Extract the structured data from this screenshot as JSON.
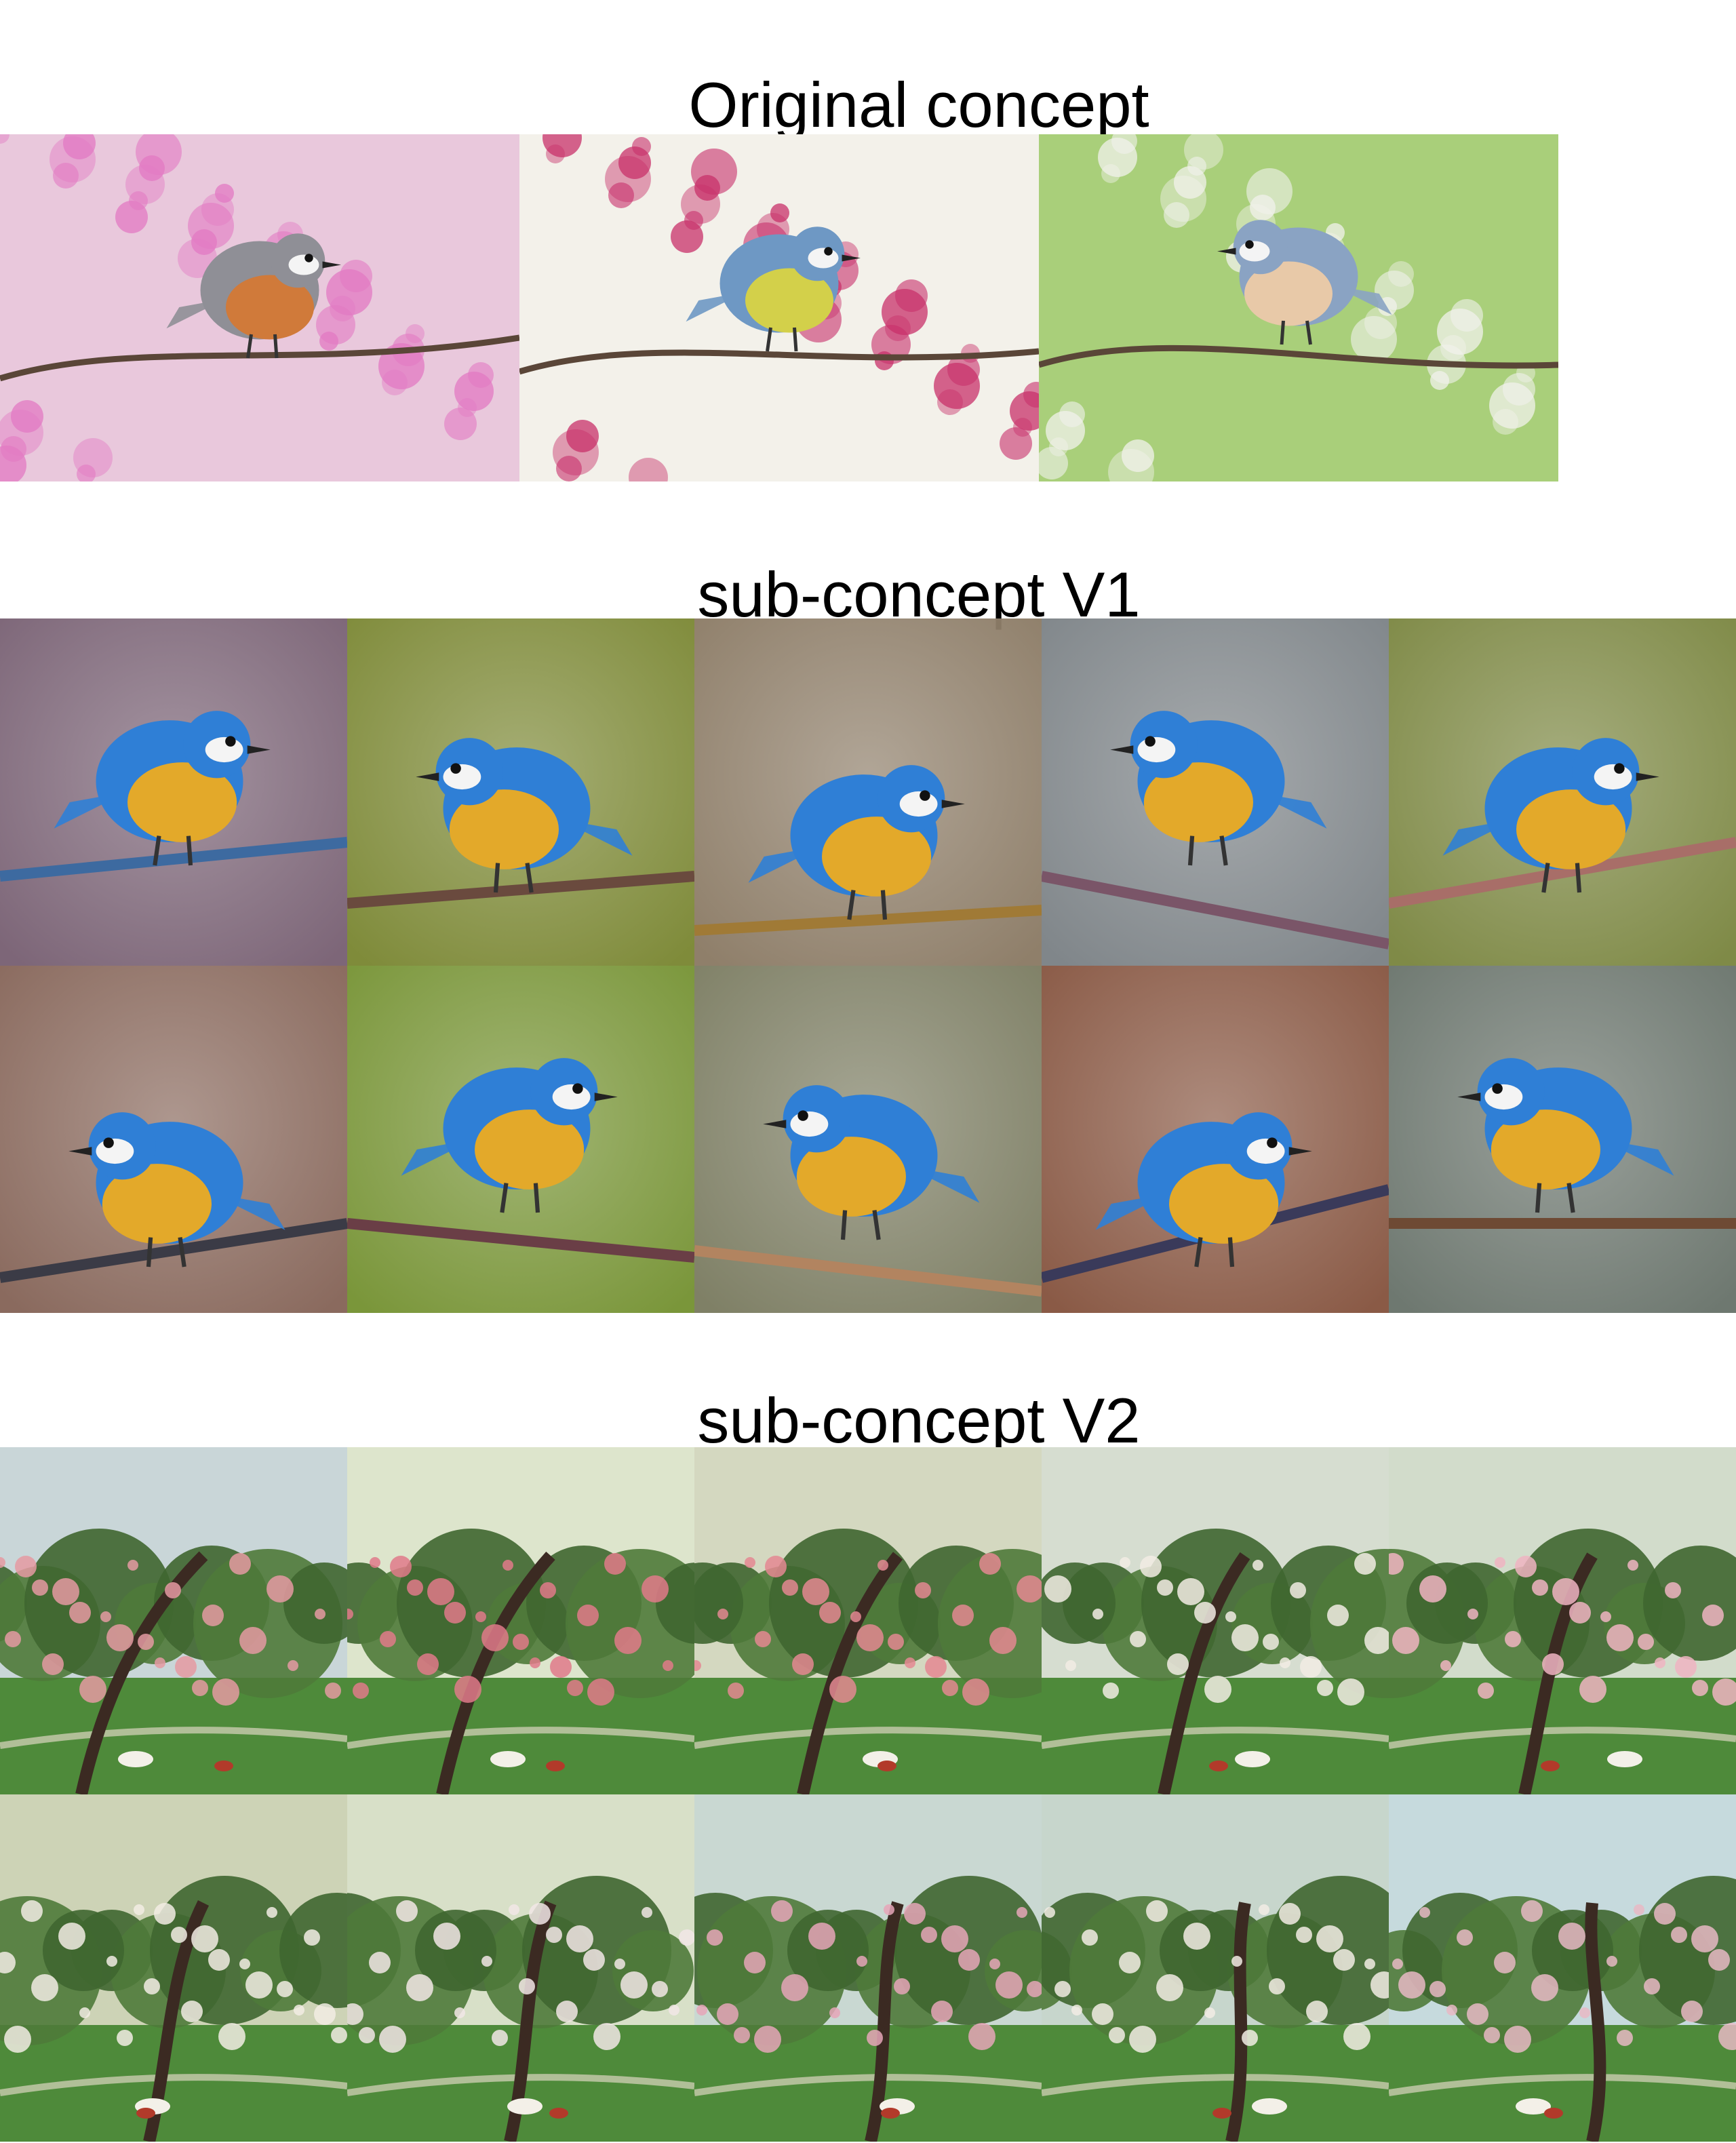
{
  "sections": {
    "original": {
      "title": "Original concept"
    },
    "v1": {
      "title": "sub-concept V1"
    },
    "v2": {
      "title": "sub-concept V2"
    }
  },
  "original_photos": [
    {
      "subject": "robin on pink blossom branch",
      "bg": "#e9c8dc",
      "blossom": "#e27ac3",
      "bird_back": "#8f8f96",
      "bird_breast": "#d07a3a"
    },
    {
      "subject": "blue tit among crabapple blossoms",
      "bg": "#f3f1ea",
      "blossom": "#c8306a",
      "bird_back": "#6e98c4",
      "bird_breast": "#d3d04a"
    },
    {
      "subject": "nuthatch on apple blossom branch",
      "bg": "#a9cf7a",
      "blossom": "#f2f2ec",
      "bird_back": "#8aa3c3",
      "bird_breast": "#e8c9a8"
    }
  ],
  "v1_images": [
    {
      "bg": "#7d6678",
      "perch": "#3d6aa0"
    },
    {
      "bg": "#7f8b3a",
      "perch": "#6a4a3e"
    },
    {
      "bg": "#8f7f6a",
      "perch": "#a07a36"
    },
    {
      "bg": "#80868a",
      "perch": "#7a5568"
    },
    {
      "bg": "#7f8a47",
      "perch": "#a86e68"
    },
    {
      "bg": "#8a6a5e",
      "perch": "#3b3b46"
    },
    {
      "bg": "#7a963a",
      "perch": "#6a3e46"
    },
    {
      "bg": "#7f8066",
      "perch": "#b28460"
    },
    {
      "bg": "#8a5a46",
      "perch": "#3a3a5a"
    },
    {
      "bg": "#6e7870",
      "perch": "#6e4a34"
    }
  ],
  "v2_images": [
    {
      "sky": "#c9d6d8",
      "blossom": "#e59aa2"
    },
    {
      "sky": "#dde5cc",
      "blossom": "#e07a8a"
    },
    {
      "sky": "#d4d8c0",
      "blossom": "#e48892"
    },
    {
      "sky": "#d6ddd0",
      "blossom": "#f2ece4"
    },
    {
      "sky": "#d2dccb",
      "blossom": "#f0b4c2"
    },
    {
      "sky": "#cdd3b6",
      "blossom": "#f2ece4"
    },
    {
      "sky": "#d8e0c8",
      "blossom": "#f2e6e6"
    },
    {
      "sky": "#c9d8d2",
      "blossom": "#e6a6b8"
    },
    {
      "sky": "#c7d6cc",
      "blossom": "#f2ece4"
    },
    {
      "sky": "#c6dadd",
      "blossom": "#e8b8c4"
    }
  ]
}
